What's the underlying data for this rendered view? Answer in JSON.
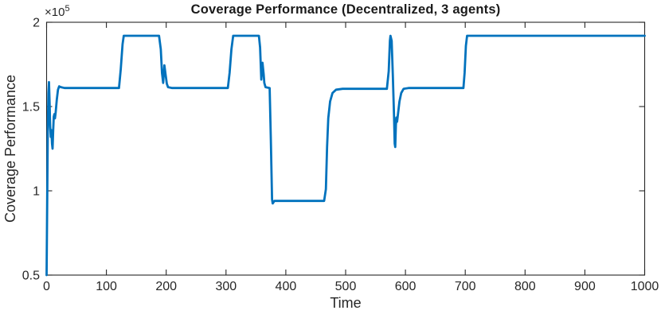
{
  "figure": {
    "background": "#ffffff"
  },
  "chart_data": {
    "type": "line",
    "title": "Coverage Performance (Decentralized, 3 agents)",
    "xlabel": "Time",
    "ylabel": "Coverage Performance",
    "y_exponent_prefix": "×10",
    "y_exponent": "5",
    "xlim": [
      0,
      1000
    ],
    "ylim": [
      50000,
      200000
    ],
    "x_ticks": [
      0,
      100,
      200,
      300,
      400,
      500,
      600,
      700,
      800,
      900,
      1000
    ],
    "x_tick_labels": [
      "0",
      "100",
      "200",
      "300",
      "400",
      "500",
      "600",
      "700",
      "800",
      "900",
      "1000"
    ],
    "y_ticks": [
      50000,
      100000,
      150000,
      200000
    ],
    "y_tick_labels": [
      "0.5",
      "1",
      "1.5",
      "2"
    ],
    "grid": false,
    "box": true,
    "tick_direction": "in",
    "axis_color": "#262626",
    "series": [
      {
        "name": "coverage-performance",
        "color": "#0072bd",
        "line_width": 2.8,
        "points": [
          [
            0,
            50000
          ],
          [
            1,
            95000
          ],
          [
            2,
            135000
          ],
          [
            3,
            158000
          ],
          [
            4,
            164500
          ],
          [
            5,
            152000
          ],
          [
            6,
            138000
          ],
          [
            7,
            132000
          ],
          [
            8,
            136000
          ],
          [
            9,
            128000
          ],
          [
            10,
            125000
          ],
          [
            11,
            136000
          ],
          [
            12,
            144000
          ],
          [
            13,
            145500
          ],
          [
            14,
            143000
          ],
          [
            15,
            146000
          ],
          [
            17,
            154000
          ],
          [
            19,
            160000
          ],
          [
            21,
            162000
          ],
          [
            24,
            161500
          ],
          [
            30,
            161000
          ],
          [
            121,
            161000
          ],
          [
            124,
            172000
          ],
          [
            127,
            187000
          ],
          [
            129,
            192000
          ],
          [
            188,
            192000
          ],
          [
            191,
            184000
          ],
          [
            193,
            170000
          ],
          [
            195,
            164000
          ],
          [
            197,
            174500
          ],
          [
            199,
            169000
          ],
          [
            201,
            163500
          ],
          [
            203,
            161500
          ],
          [
            210,
            161000
          ],
          [
            303,
            161000
          ],
          [
            306,
            170000
          ],
          [
            309,
            184000
          ],
          [
            312,
            192000
          ],
          [
            355,
            192000
          ],
          [
            357,
            185000
          ],
          [
            359,
            166000
          ],
          [
            361,
            176000
          ],
          [
            363,
            169000
          ],
          [
            364,
            164000
          ],
          [
            366,
            161500
          ],
          [
            373,
            161000
          ],
          [
            375,
            130000
          ],
          [
            377,
            95000
          ],
          [
            378,
            92500
          ],
          [
            381,
            94000
          ],
          [
            464,
            94000
          ],
          [
            467,
            101000
          ],
          [
            469,
            126000
          ],
          [
            471,
            143000
          ],
          [
            474,
            153000
          ],
          [
            478,
            158000
          ],
          [
            484,
            160000
          ],
          [
            495,
            160500
          ],
          [
            569,
            160500
          ],
          [
            572,
            171000
          ],
          [
            574,
            189000
          ],
          [
            575,
            192000
          ],
          [
            577,
            189000
          ],
          [
            579,
            168000
          ],
          [
            581,
            144000
          ],
          [
            582,
            128000
          ],
          [
            583,
            126000
          ],
          [
            584,
            139000
          ],
          [
            585,
            143500
          ],
          [
            586,
            141000
          ],
          [
            588,
            147000
          ],
          [
            590,
            153000
          ],
          [
            593,
            158000
          ],
          [
            597,
            160500
          ],
          [
            605,
            161000
          ],
          [
            697,
            161000
          ],
          [
            699,
            170000
          ],
          [
            701,
            186000
          ],
          [
            703,
            192000
          ],
          [
            1000,
            192000
          ]
        ]
      }
    ]
  }
}
